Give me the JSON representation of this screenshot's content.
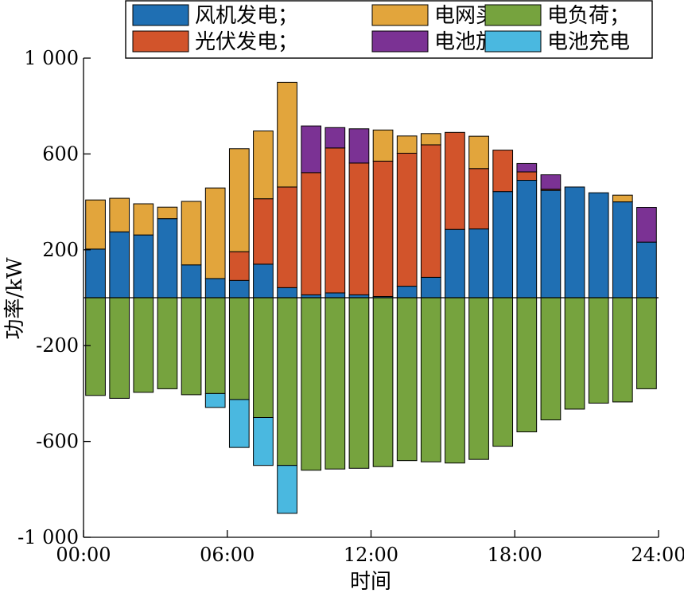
{
  "chart_data": {
    "type": "bar",
    "stacked": true,
    "xlabel": "时间",
    "ylabel": "功率/kW",
    "x_axis": {
      "range": [
        0,
        24
      ],
      "tick_values": [
        0,
        6,
        12,
        18,
        24
      ],
      "tick_labels": [
        "00:00",
        "06:00",
        "12:00",
        "18:00",
        "24:00"
      ]
    },
    "y_axis": {
      "range": [
        -1000,
        1000
      ],
      "tick_values": [
        1000,
        600,
        200,
        -200,
        -600,
        -1000
      ],
      "tick_labels": [
        "1 000",
        "600",
        "200",
        "-200",
        "-600",
        "-1 000"
      ]
    },
    "grid": false,
    "legend": {
      "placement": "top",
      "columns": 3,
      "items": [
        {
          "label": "风机发电；",
          "series": "wind"
        },
        {
          "label": "电网买电；",
          "series": "grid"
        },
        {
          "label": "电负荷；",
          "series": "load"
        },
        {
          "label": "光伏发电；",
          "series": "pv"
        },
        {
          "label": "电池放电；",
          "series": "discharge"
        },
        {
          "label": "电池充电",
          "series": "charge"
        }
      ]
    },
    "hours": [
      1,
      2,
      3,
      4,
      5,
      6,
      7,
      8,
      9,
      10,
      11,
      12,
      13,
      14,
      15,
      16,
      17,
      18,
      19,
      20,
      21,
      22,
      23,
      24
    ],
    "positive_stack_order": [
      "wind",
      "pv",
      "grid",
      "discharge"
    ],
    "negative_stack_order": [
      "load",
      "charge"
    ],
    "series": [
      {
        "key": "wind",
        "name": "风机发电",
        "color": "#1f6fb3",
        "values": [
          203,
          275,
          262,
          330,
          137,
          80,
          72,
          140,
          42,
          12,
          20,
          12,
          5,
          48,
          85,
          285,
          287,
          443,
          490,
          448,
          462,
          438,
          400,
          232
        ]
      },
      {
        "key": "pv",
        "name": "光伏发电",
        "color": "#d2542b",
        "values": [
          0,
          0,
          0,
          0,
          0,
          0,
          120,
          273,
          420,
          510,
          605,
          550,
          565,
          555,
          553,
          405,
          252,
          173,
          35,
          5,
          0,
          0,
          0,
          0
        ]
      },
      {
        "key": "grid",
        "name": "电网买电",
        "color": "#e2a53c",
        "values": [
          205,
          140,
          130,
          48,
          265,
          378,
          430,
          283,
          437,
          0,
          0,
          0,
          130,
          72,
          47,
          0,
          135,
          0,
          0,
          0,
          0,
          0,
          28,
          0
        ]
      },
      {
        "key": "discharge",
        "name": "电池放电",
        "color": "#7b3294",
        "values": [
          0,
          0,
          0,
          0,
          0,
          0,
          0,
          0,
          0,
          195,
          85,
          143,
          0,
          0,
          0,
          0,
          0,
          0,
          35,
          60,
          0,
          0,
          0,
          145
        ]
      },
      {
        "key": "load",
        "name": "电负荷",
        "color": "#76a33e",
        "values": [
          -408,
          -420,
          -395,
          -380,
          -405,
          -400,
          -425,
          -500,
          -700,
          -720,
          -715,
          -712,
          -705,
          -680,
          -685,
          -690,
          -675,
          -620,
          -560,
          -510,
          -465,
          -440,
          -435,
          -380
        ]
      },
      {
        "key": "charge",
        "name": "电池充电",
        "color": "#4ab8e0",
        "values": [
          0,
          0,
          0,
          0,
          0,
          -58,
          -200,
          -200,
          -200,
          0,
          0,
          0,
          0,
          0,
          0,
          0,
          0,
          0,
          0,
          0,
          0,
          0,
          0,
          0
        ]
      }
    ]
  }
}
